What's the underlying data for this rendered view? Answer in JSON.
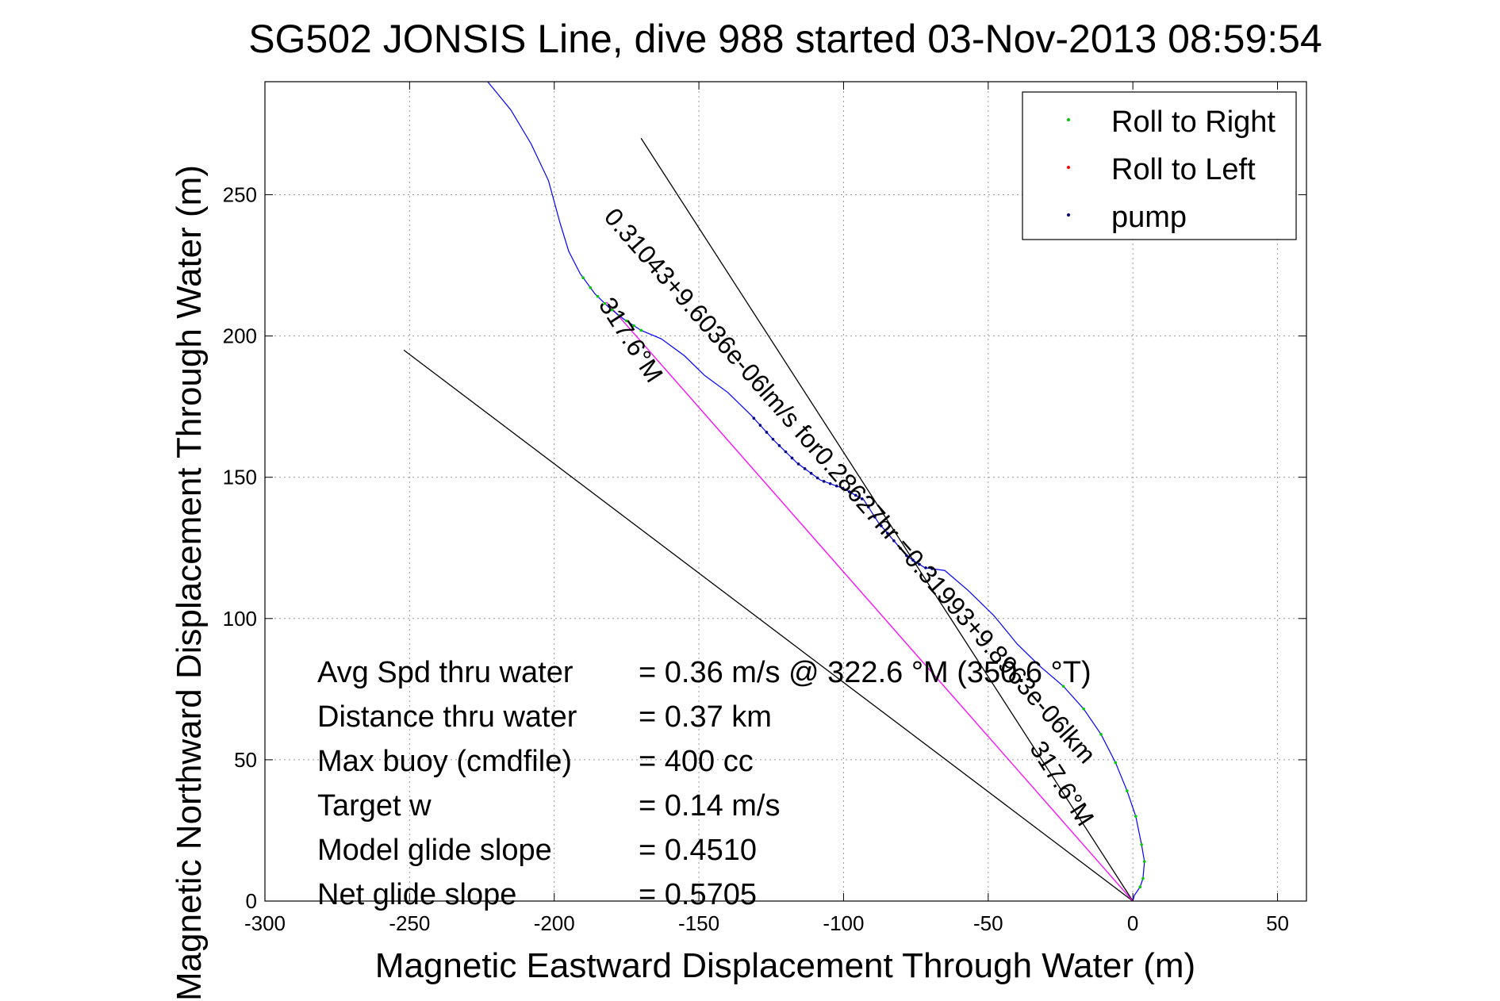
{
  "chart_data": {
    "type": "line",
    "title": "SG502 JONSIS Line, dive 988 started 03-Nov-2013 08:59:54",
    "xlabel": "Magnetic Eastward Displacement Through Water (m)",
    "ylabel": "Magnetic Northward Displacement Through Water (m)",
    "xlim": [
      -300,
      60
    ],
    "ylim": [
      0,
      290
    ],
    "xticks": [
      -300,
      -250,
      -200,
      -150,
      -100,
      -50,
      0,
      50
    ],
    "yticks": [
      0,
      50,
      100,
      150,
      200,
      250
    ],
    "grid": true,
    "legend_position": "top-right",
    "legend": [
      {
        "label": "Roll to Right",
        "color": "#00cc00"
      },
      {
        "label": "Roll to Left",
        "color": "#ff0000"
      },
      {
        "label": "pump",
        "color": "#000080"
      }
    ],
    "track": {
      "color": "#0000ff",
      "x": [
        -223,
        -215,
        -208,
        -202,
        -198,
        -195,
        -191,
        -186,
        -181,
        -176,
        -170,
        -163,
        -155,
        -148,
        -140,
        -132,
        -124,
        -116,
        -108,
        -100,
        -93,
        -88,
        -83,
        -78,
        -72,
        -65,
        -57,
        -48,
        -40,
        -32,
        -24,
        -17,
        -11,
        -6,
        -2,
        1,
        3,
        4,
        3.5,
        2.5,
        0.5,
        0
      ],
      "y": [
        290,
        280,
        268,
        255,
        240,
        230,
        222,
        215,
        210,
        206,
        202,
        199,
        193,
        186,
        180,
        172,
        163,
        155,
        149,
        146,
        142,
        134,
        128,
        122,
        118,
        117,
        110,
        101,
        91,
        83,
        76,
        68,
        59,
        49,
        39,
        30,
        20,
        14,
        8,
        5,
        2,
        0
      ]
    },
    "roll_right_x_ranges": [
      [
        -190,
        -170
      ],
      [
        -25,
        4
      ]
    ],
    "pump_x_ranges": [
      [
        -131,
        -68
      ]
    ],
    "reference_lines": [
      {
        "label": "317.6°M",
        "x1": 0,
        "y1": 0,
        "x2": -170,
        "y2": 270,
        "color": "#000000"
      },
      {
        "label": "",
        "x1": 0,
        "y1": 0,
        "x2": -252,
        "y2": 195,
        "color": "#000000"
      },
      {
        "label": "",
        "x1": 0,
        "y1": 0,
        "x2": -182,
        "y2": 212,
        "color": "#ff00ff"
      }
    ],
    "line_annotations": [
      {
        "text": "317.6°M",
        "x": -27,
        "y": 40
      },
      {
        "text": "317.6°M",
        "x": -176,
        "y": 197
      },
      {
        "text": "0.31043+9.6036e-06lm/s for0.28627hr =0.31993+9.8963e-06lkm",
        "x": -100,
        "y": 145
      }
    ],
    "stats": [
      {
        "label": "Avg Spd thru water",
        "value": "=  0.36 m/s @  322.6 °M (350.6 °T)"
      },
      {
        "label": "Distance thru water",
        "value": "=  0.37 km"
      },
      {
        "label": "Max buoy (cmdfile)",
        "value": "= 400 cc"
      },
      {
        "label": "Target w",
        "value": "= 0.14 m/s"
      },
      {
        "label": "Model glide slope",
        "value": "= 0.4510"
      },
      {
        "label": "Net glide slope",
        "value": "= 0.5705"
      }
    ]
  }
}
